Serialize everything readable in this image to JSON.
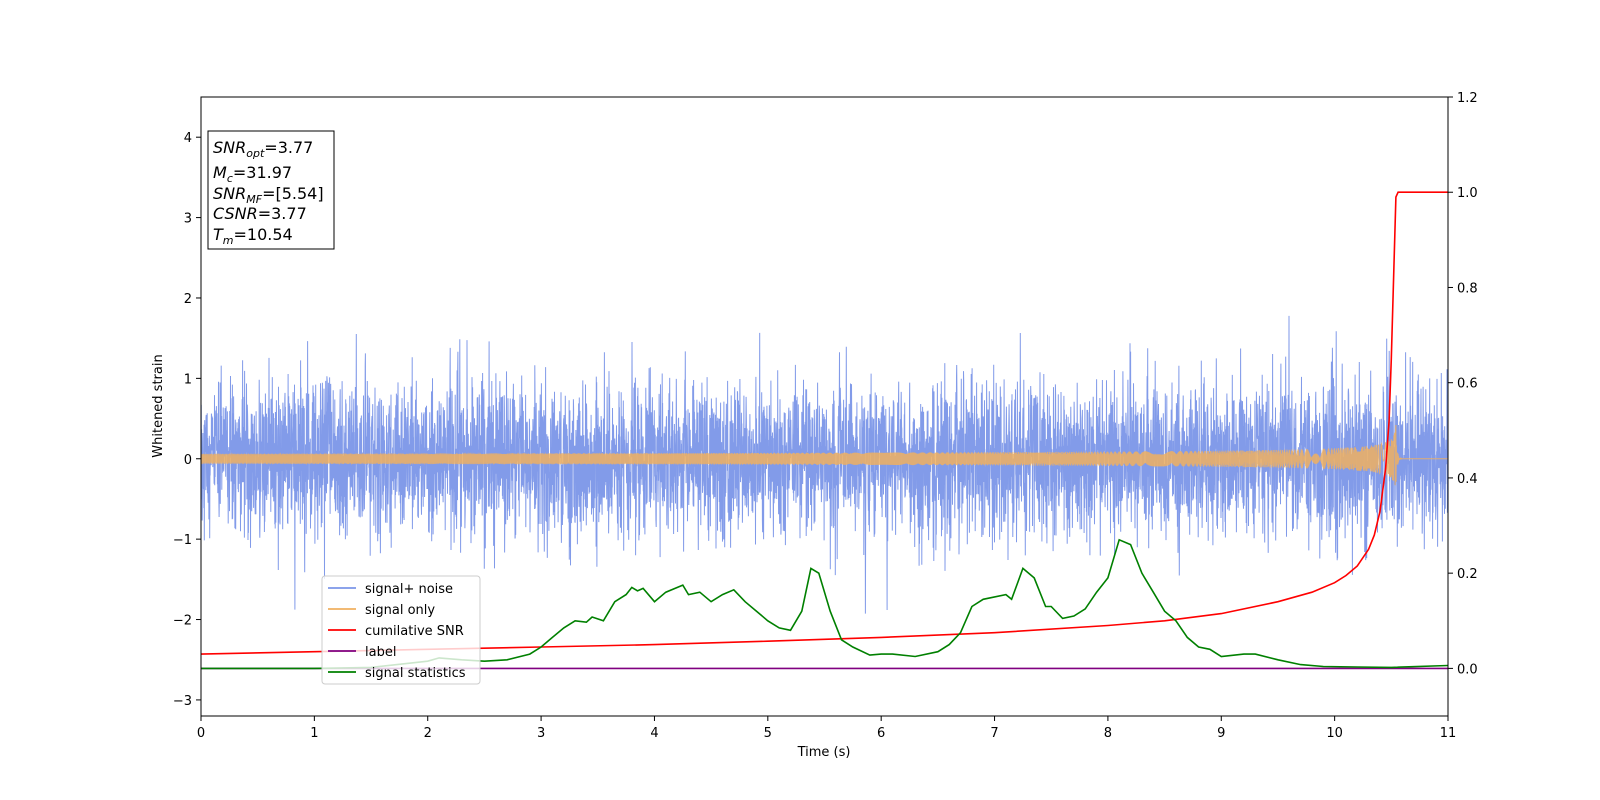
{
  "chart_data": {
    "type": "line",
    "xlabel": "Time (s)",
    "ylabel": "Whitened strain",
    "xlim": [
      0,
      11
    ],
    "ylim_left": [
      -3.2,
      4.5
    ],
    "ylim_right": [
      -0.1,
      1.2
    ],
    "x_ticks": [
      0,
      1,
      2,
      3,
      4,
      5,
      6,
      7,
      8,
      9,
      10,
      11
    ],
    "y_ticks_left": [
      -3,
      -2,
      -1,
      0,
      1,
      2,
      3,
      4
    ],
    "y_ticks_right": [
      0.0,
      0.2,
      0.4,
      0.6,
      0.8,
      1.0,
      1.2
    ],
    "grid": false,
    "legend_position": "lower-left",
    "annotation": {
      "position": "upper-left",
      "lines": [
        {
          "main": "SNR",
          "sub": "opt",
          "value": "=3.77"
        },
        {
          "main": "M",
          "sub": "c",
          "value": "=31.97"
        },
        {
          "main": "SNR",
          "sub": "MF",
          "value": "=[5.54]"
        },
        {
          "main": "CSNR",
          "sub": "",
          "value": "=3.77"
        },
        {
          "main": "T",
          "sub": "m",
          "value": "=10.54"
        }
      ]
    },
    "series": [
      {
        "name": "signal+ noise",
        "axis": "left",
        "color": "#7b96e8",
        "kind": "noise",
        "std": 0.47,
        "peak_abs": 2.25,
        "x_range": [
          0,
          11
        ]
      },
      {
        "name": "signal only",
        "axis": "left",
        "color": "#f0b060",
        "kind": "chirp",
        "merger_time": 10.54,
        "peak_amplitude": 0.45,
        "x_range": [
          0,
          11
        ]
      },
      {
        "name": "cumilative SNR",
        "axis": "right",
        "color": "#ff0000",
        "kind": "line",
        "x": [
          0,
          1,
          2,
          3,
          4,
          5,
          6,
          7,
          8,
          8.5,
          9,
          9.5,
          9.8,
          10,
          10.1,
          10.2,
          10.3,
          10.35,
          10.4,
          10.45,
          10.48,
          10.5,
          10.52,
          10.54,
          10.56,
          11
        ],
        "y": [
          0.03,
          0.035,
          0.04,
          0.045,
          0.05,
          0.057,
          0.065,
          0.075,
          0.09,
          0.1,
          0.115,
          0.14,
          0.16,
          0.18,
          0.195,
          0.215,
          0.25,
          0.28,
          0.33,
          0.42,
          0.52,
          0.65,
          0.82,
          0.99,
          1.0,
          1.0
        ]
      },
      {
        "name": "label",
        "axis": "right",
        "color": "#800080",
        "kind": "line",
        "x": [
          0,
          11
        ],
        "y": [
          0.0,
          0.0
        ]
      },
      {
        "name": "signal statistics",
        "axis": "right",
        "color": "#008000",
        "kind": "line",
        "x": [
          0,
          1,
          1.5,
          2,
          2.1,
          2.3,
          2.5,
          2.7,
          2.9,
          3.0,
          3.1,
          3.2,
          3.3,
          3.4,
          3.45,
          3.55,
          3.65,
          3.75,
          3.8,
          3.85,
          3.9,
          4.0,
          4.1,
          4.25,
          4.3,
          4.4,
          4.5,
          4.6,
          4.7,
          4.8,
          4.9,
          5.0,
          5.1,
          5.2,
          5.3,
          5.38,
          5.45,
          5.55,
          5.65,
          5.75,
          5.9,
          6.0,
          6.1,
          6.3,
          6.5,
          6.6,
          6.7,
          6.8,
          6.9,
          7.1,
          7.15,
          7.25,
          7.35,
          7.45,
          7.5,
          7.6,
          7.7,
          7.8,
          7.9,
          8.0,
          8.1,
          8.2,
          8.3,
          8.4,
          8.5,
          8.6,
          8.7,
          8.8,
          8.9,
          9.0,
          9.2,
          9.3,
          9.5,
          9.7,
          9.9,
          10.2,
          10.5,
          11
        ],
        "y": [
          0.0,
          0.0,
          0.002,
          0.015,
          0.022,
          0.018,
          0.015,
          0.018,
          0.03,
          0.045,
          0.065,
          0.085,
          0.1,
          0.097,
          0.108,
          0.1,
          0.14,
          0.155,
          0.17,
          0.163,
          0.168,
          0.14,
          0.16,
          0.175,
          0.155,
          0.16,
          0.14,
          0.155,
          0.165,
          0.14,
          0.12,
          0.1,
          0.085,
          0.08,
          0.12,
          0.21,
          0.2,
          0.12,
          0.06,
          0.045,
          0.028,
          0.03,
          0.03,
          0.025,
          0.035,
          0.05,
          0.075,
          0.13,
          0.145,
          0.155,
          0.145,
          0.21,
          0.19,
          0.13,
          0.13,
          0.105,
          0.11,
          0.125,
          0.16,
          0.19,
          0.27,
          0.26,
          0.2,
          0.16,
          0.12,
          0.1,
          0.065,
          0.045,
          0.04,
          0.025,
          0.03,
          0.03,
          0.018,
          0.008,
          0.004,
          0.003,
          0.002,
          0.006
        ]
      }
    ]
  }
}
